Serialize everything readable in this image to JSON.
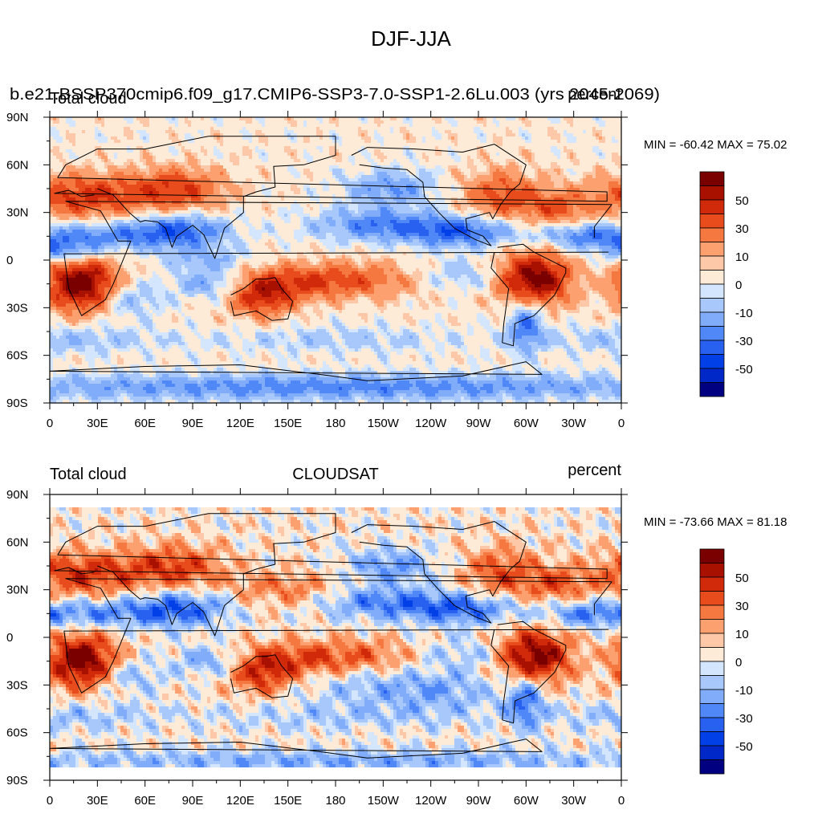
{
  "page_title": "DJF-JJA",
  "panels": [
    {
      "left_title": "b.e21.BSSP370cmip6.f09_g17.CMIP6-SSP3-7.0-SSP1-2.6Lu.003 (yrs 2045-2069)",
      "left_subtitle": "Total cloud",
      "center_title": "",
      "right_title": "percent",
      "minmax": "MIN = -60.42 MAX =  75.02"
    },
    {
      "left_title": "Total cloud",
      "left_subtitle": "",
      "center_title": "CLOUDSAT",
      "right_title": "percent",
      "minmax": "MIN = -73.66 MAX =  81.18"
    }
  ],
  "colors": {
    "levels": [
      "#000080",
      "#0028c8",
      "#0040e6",
      "#2860f0",
      "#5088f8",
      "#80acfa",
      "#a8c8fc",
      "#d4e6fe",
      "#fdebd8",
      "#fdc8a8",
      "#fca070",
      "#f47840",
      "#e84c1c",
      "#d02a0a",
      "#a81000",
      "#7a0000"
    ]
  },
  "chart_data": [
    {
      "type": "heatmap",
      "title": "b.e21.BSSP370cmip6.f09_g17.CMIP6-SSP3-7.0-SSP1-2.6Lu.003 (yrs 2045-2069)",
      "variable": "Total cloud",
      "units": "percent",
      "x_ticks": [
        "0",
        "30E",
        "60E",
        "90E",
        "120E",
        "150E",
        "180",
        "150W",
        "120W",
        "90W",
        "60W",
        "30W",
        "0"
      ],
      "y_ticks": [
        "90N",
        "60N",
        "30N",
        "0",
        "30S",
        "60S",
        "90S"
      ],
      "xlim": [
        0,
        360
      ],
      "ylim": [
        -90,
        90
      ],
      "contour_levels": [
        -70,
        -60,
        -50,
        -40,
        -30,
        -20,
        -10,
        -5,
        5,
        10,
        20,
        30,
        40,
        50,
        60
      ],
      "colorbar_labels": [
        "50",
        "30",
        "10",
        "0",
        "-10",
        "-30",
        "-50"
      ],
      "min": -60.42,
      "max": 75.02
    },
    {
      "type": "heatmap",
      "title": "CLOUDSAT",
      "variable": "Total cloud",
      "units": "percent",
      "x_ticks": [
        "0",
        "30E",
        "60E",
        "90E",
        "120E",
        "150E",
        "180",
        "150W",
        "120W",
        "90W",
        "60W",
        "30W",
        "0"
      ],
      "y_ticks": [
        "90N",
        "60N",
        "30N",
        "0",
        "30S",
        "60S",
        "90S"
      ],
      "xlim": [
        0,
        360
      ],
      "ylim": [
        -90,
        90
      ],
      "contour_levels": [
        -70,
        -60,
        -50,
        -40,
        -30,
        -20,
        -10,
        -5,
        5,
        10,
        20,
        30,
        40,
        50,
        60
      ],
      "colorbar_labels": [
        "50",
        "30",
        "10",
        "0",
        "-10",
        "-30",
        "-50"
      ],
      "min": -73.66,
      "max": 81.18
    }
  ]
}
